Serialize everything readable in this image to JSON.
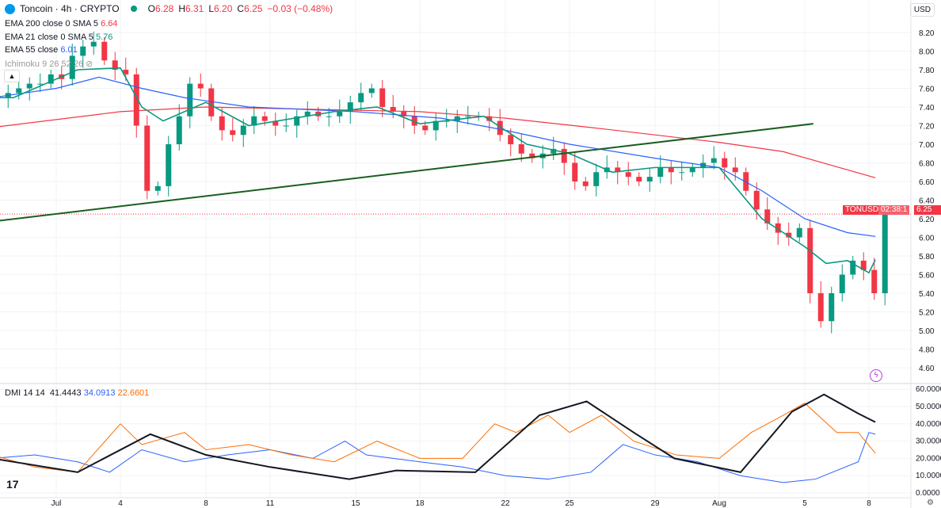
{
  "header": {
    "symbol": "Toncoin · 4h · CRYPTO",
    "o_label": "O",
    "o": "6.28",
    "h_label": "H",
    "h": "6.31",
    "l_label": "L",
    "l": "6.20",
    "c_label": "C",
    "c": "6.25",
    "change": "−0.03 (−0.48%)"
  },
  "indicators": {
    "ema200_label": "EMA 200 close 0 SMA 5",
    "ema200_value": "6.64",
    "ema21_label": "EMA 21 close 0 SMA 5",
    "ema21_value": "5.76",
    "ema55_label": "EMA 55 close",
    "ema55_value": "6.01",
    "ichimoku_label": "Ichimoku 9 26 52 26"
  },
  "dmi": {
    "label": "DMI 14 14",
    "adx": "41.4443",
    "plus_di": "34.0913",
    "minus_di": "22.6601"
  },
  "currency": "USD",
  "price_tag": {
    "symbol": "TONUSD",
    "price": "6.25",
    "countdown": "02:38:1"
  },
  "colors": {
    "up": "#089981",
    "down": "#f23645",
    "ema200": "#f23645",
    "ema21": "#089981",
    "ema55": "#2962ff",
    "trend": "#1b5e20",
    "adx": "#131722",
    "plus_di": "#2962ff",
    "minus_di": "#ff6d00"
  },
  "chart_data": {
    "type": "candlestick",
    "title": "Toncoin · 4h · CRYPTO",
    "price_ticks": [
      "8.20",
      "8.00",
      "7.80",
      "7.60",
      "7.40",
      "7.20",
      "7.00",
      "6.80",
      "6.60",
      "6.40",
      "6.20",
      "6.00",
      "5.80",
      "5.60",
      "5.40",
      "5.20",
      "5.00",
      "4.80",
      "4.60"
    ],
    "ylim": [
      4.6,
      8.2
    ],
    "dmi_ticks": [
      "60.0000",
      "50.0000",
      "40.0000",
      "30.0000",
      "20.0000",
      "10.0000",
      "0.0000"
    ],
    "dmi_ylim": [
      0,
      60
    ],
    "x_ticks": [
      {
        "day": 3,
        "label": "Jul"
      },
      {
        "day": 6,
        "label": "4"
      },
      {
        "day": 10,
        "label": "8"
      },
      {
        "day": 13,
        "label": "11"
      },
      {
        "day": 17,
        "label": "15"
      },
      {
        "day": 20,
        "label": "18"
      },
      {
        "day": 24,
        "label": "22"
      },
      {
        "day": 27,
        "label": "25"
      },
      {
        "day": 31,
        "label": "29"
      },
      {
        "day": 34,
        "label": "Aug"
      },
      {
        "day": 38,
        "label": "5"
      },
      {
        "day": 41,
        "label": "8"
      }
    ],
    "closes_half_day": [
      7.5,
      7.55,
      7.6,
      7.65,
      7.65,
      7.75,
      7.7,
      7.95,
      8.05,
      8.1,
      7.9,
      7.8,
      7.75,
      7.2,
      6.5,
      6.55,
      7.0,
      7.3,
      7.65,
      7.6,
      7.3,
      7.15,
      7.1,
      7.2,
      7.3,
      7.25,
      7.2,
      7.2,
      7.3,
      7.35,
      7.3,
      7.3,
      7.35,
      7.45,
      7.55,
      7.6,
      7.4,
      7.35,
      7.3,
      7.2,
      7.15,
      7.25,
      7.25,
      7.3,
      7.3,
      7.3,
      7.25,
      7.1,
      7.0,
      6.9,
      6.85,
      6.9,
      6.95,
      6.8,
      6.6,
      6.55,
      6.7,
      6.75,
      6.7,
      6.65,
      6.6,
      6.65,
      6.75,
      6.7,
      6.7,
      6.75,
      6.8,
      6.85,
      6.75,
      6.7,
      6.5,
      6.3,
      6.15,
      6.05,
      6.0,
      6.1,
      5.4,
      5.1,
      5.4,
      5.6,
      5.75,
      5.65,
      5.4,
      6.25
    ],
    "last_price": 6.25,
    "ema200": [
      [
        0,
        7.18
      ],
      [
        6,
        7.35
      ],
      [
        10,
        7.4
      ],
      [
        20,
        7.35
      ],
      [
        24,
        7.28
      ],
      [
        28,
        7.18
      ],
      [
        34,
        7.02
      ],
      [
        37,
        6.92
      ],
      [
        41.3,
        6.64
      ]
    ],
    "ema55": [
      [
        0,
        7.5
      ],
      [
        3,
        7.6
      ],
      [
        5,
        7.72
      ],
      [
        7,
        7.6
      ],
      [
        9,
        7.5
      ],
      [
        12,
        7.4
      ],
      [
        17,
        7.35
      ],
      [
        21,
        7.28
      ],
      [
        24,
        7.15
      ],
      [
        27,
        7.0
      ],
      [
        31,
        6.85
      ],
      [
        34,
        6.75
      ],
      [
        36,
        6.5
      ],
      [
        38,
        6.2
      ],
      [
        40,
        6.05
      ],
      [
        41.3,
        6.01
      ]
    ],
    "ema21": [
      [
        0,
        7.5
      ],
      [
        1,
        7.5
      ],
      [
        4,
        7.8
      ],
      [
        6,
        7.82
      ],
      [
        7,
        7.4
      ],
      [
        8,
        7.25
      ],
      [
        10,
        7.45
      ],
      [
        12,
        7.2
      ],
      [
        16,
        7.35
      ],
      [
        18,
        7.4
      ],
      [
        20,
        7.22
      ],
      [
        23,
        7.3
      ],
      [
        25,
        7.0
      ],
      [
        27,
        6.9
      ],
      [
        29,
        6.7
      ],
      [
        31,
        6.75
      ],
      [
        34,
        6.75
      ],
      [
        36,
        6.2
      ],
      [
        38,
        5.9
      ],
      [
        39,
        5.72
      ],
      [
        40,
        5.75
      ],
      [
        41,
        5.62
      ],
      [
        41.3,
        5.76
      ]
    ],
    "trendline": [
      [
        0.37,
        6.18
      ],
      [
        38.4,
        7.22
      ]
    ],
    "adx": [
      [
        0,
        20
      ],
      [
        4,
        12
      ],
      [
        7.4,
        34
      ],
      [
        10,
        22
      ],
      [
        13,
        15
      ],
      [
        16.7,
        8
      ],
      [
        18.9,
        13
      ],
      [
        22.6,
        12
      ],
      [
        25.6,
        45
      ],
      [
        27.8,
        53
      ],
      [
        30,
        35
      ],
      [
        31.9,
        20
      ],
      [
        35,
        12
      ],
      [
        37.4,
        47
      ],
      [
        38.9,
        57
      ],
      [
        40.5,
        46
      ],
      [
        41.3,
        41
      ]
    ],
    "plus_di": [
      [
        0,
        20
      ],
      [
        2,
        22
      ],
      [
        4,
        18
      ],
      [
        5.5,
        12
      ],
      [
        7,
        25
      ],
      [
        9,
        18
      ],
      [
        11,
        22
      ],
      [
        13,
        25
      ],
      [
        15,
        20
      ],
      [
        16.5,
        30
      ],
      [
        17.5,
        22
      ],
      [
        20,
        18
      ],
      [
        22,
        15
      ],
      [
        24,
        10
      ],
      [
        26,
        8
      ],
      [
        28,
        12
      ],
      [
        29.5,
        28
      ],
      [
        31,
        22
      ],
      [
        33,
        18
      ],
      [
        35,
        10
      ],
      [
        37,
        6
      ],
      [
        38.5,
        8
      ],
      [
        40.5,
        18
      ],
      [
        41,
        35
      ],
      [
        41.3,
        34
      ]
    ],
    "minus_di": [
      [
        0,
        22
      ],
      [
        2,
        15
      ],
      [
        4,
        12
      ],
      [
        6,
        40
      ],
      [
        7,
        28
      ],
      [
        9,
        35
      ],
      [
        10,
        25
      ],
      [
        12,
        28
      ],
      [
        14,
        22
      ],
      [
        16,
        18
      ],
      [
        18,
        30
      ],
      [
        20,
        20
      ],
      [
        22,
        20
      ],
      [
        23.5,
        40
      ],
      [
        24.5,
        35
      ],
      [
        26,
        45
      ],
      [
        27,
        35
      ],
      [
        28.5,
        45
      ],
      [
        30,
        30
      ],
      [
        32,
        22
      ],
      [
        34,
        20
      ],
      [
        35.5,
        35
      ],
      [
        37,
        45
      ],
      [
        38,
        52
      ],
      [
        39.5,
        35
      ],
      [
        40.5,
        35
      ],
      [
        41.3,
        23
      ]
    ]
  }
}
